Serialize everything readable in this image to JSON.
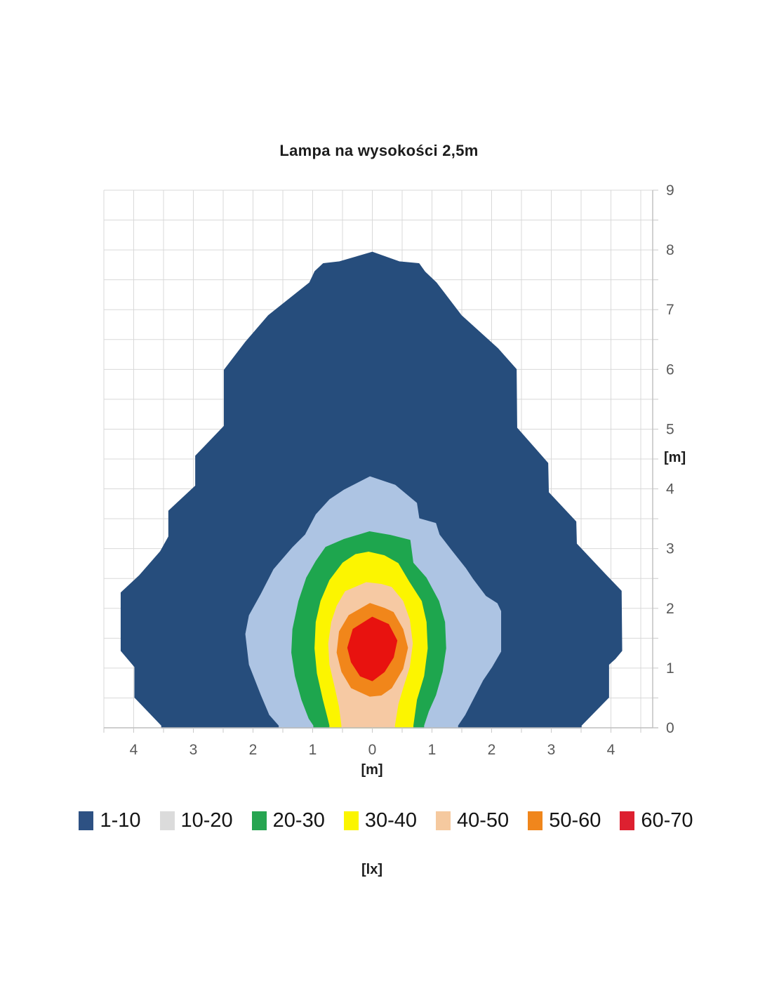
{
  "page": {
    "background": "#ffffff"
  },
  "labels": {
    "title": "Lampa na wysokości 2,5m",
    "y_axis_unit": "[m]",
    "x_axis_unit": "[m]",
    "legend_unit": "[lx]"
  },
  "style_colors": {
    "grid": "#d9d9d9",
    "axis_line": "#bdbdbd",
    "tick": "#c9c9c9",
    "tick_label": "#595959"
  },
  "chart_data": {
    "type": "heatmap",
    "subtype": "filled-contour",
    "title": "Lampa na wysokości 2,5m",
    "xlabel": "[m]",
    "ylabel": "[m]",
    "unit_label": "[lx]",
    "xlim": [
      -4.5,
      4.7
    ],
    "ylim": [
      0,
      9
    ],
    "grid": true,
    "x_grid_range": [
      -4.5,
      4.5
    ],
    "y_grid_range": [
      0,
      9
    ],
    "x_ticks": {
      "values": [
        -4,
        -3,
        -2,
        -1,
        0,
        1,
        2,
        3,
        4
      ],
      "labels": [
        "4",
        "3",
        "2",
        "1",
        "0",
        "1",
        "2",
        "3",
        "4"
      ],
      "minor_step": 0.5
    },
    "y_ticks": {
      "values": [
        0,
        1,
        2,
        3,
        4,
        5,
        6,
        7,
        8,
        9
      ],
      "labels": [
        "0",
        "1",
        "2",
        "3",
        "4",
        "5",
        "6",
        "7",
        "8",
        "9"
      ],
      "minor_step": 0.5,
      "side": "right"
    },
    "legend_position": "bottom",
    "legend": [
      {
        "label": "1-10",
        "swatch": "#2d5183"
      },
      {
        "label": "10-20",
        "swatch": "#dbdbdb"
      },
      {
        "label": "20-30",
        "swatch": "#27a551"
      },
      {
        "label": "30-40",
        "swatch": "#fbf500"
      },
      {
        "label": "40-50",
        "swatch": "#f5c99f"
      },
      {
        "label": "50-60",
        "swatch": "#f0861c"
      },
      {
        "label": "60-70",
        "swatch": "#dd2030"
      }
    ],
    "bands": [
      {
        "range": "1-10",
        "lx_min": 1,
        "lx_max": 10,
        "fill": "#264d7c",
        "points": [
          [
            0.0,
            7.96
          ],
          [
            0.45,
            7.8
          ],
          [
            0.78,
            7.77
          ],
          [
            0.88,
            7.63
          ],
          [
            1.07,
            7.45
          ],
          [
            1.49,
            6.9
          ],
          [
            2.1,
            6.35
          ],
          [
            2.41,
            6.0
          ],
          [
            2.42,
            5.02
          ],
          [
            2.94,
            4.43
          ],
          [
            2.95,
            3.94
          ],
          [
            3.41,
            3.45
          ],
          [
            3.42,
            3.08
          ],
          [
            3.92,
            2.55
          ],
          [
            4.17,
            2.29
          ],
          [
            4.18,
            1.29
          ],
          [
            4.07,
            1.16
          ],
          [
            3.96,
            1.06
          ],
          [
            3.96,
            0.51
          ],
          [
            3.5,
            0.04
          ],
          [
            3.5,
            0.0
          ],
          [
            -3.53,
            0.0
          ],
          [
            -3.53,
            0.04
          ],
          [
            -3.98,
            0.51
          ],
          [
            -3.98,
            1.02
          ],
          [
            -4.21,
            1.29
          ],
          [
            -4.21,
            2.26
          ],
          [
            -3.9,
            2.55
          ],
          [
            -3.55,
            2.95
          ],
          [
            -3.41,
            3.2
          ],
          [
            -3.41,
            3.63
          ],
          [
            -2.96,
            4.05
          ],
          [
            -2.96,
            4.55
          ],
          [
            -2.48,
            5.05
          ],
          [
            -2.48,
            5.99
          ],
          [
            -2.12,
            6.46
          ],
          [
            -1.74,
            6.9
          ],
          [
            -1.05,
            7.45
          ],
          [
            -0.96,
            7.64
          ],
          [
            -0.82,
            7.77
          ],
          [
            -0.55,
            7.8
          ]
        ]
      },
      {
        "range": "10-20",
        "lx_min": 10,
        "lx_max": 20,
        "fill": "#adc4e3",
        "points": [
          [
            -0.04,
            4.2
          ],
          [
            0.38,
            4.06
          ],
          [
            0.74,
            3.76
          ],
          [
            0.78,
            3.5
          ],
          [
            1.06,
            3.42
          ],
          [
            1.12,
            3.23
          ],
          [
            1.33,
            2.96
          ],
          [
            1.56,
            2.67
          ],
          [
            1.68,
            2.49
          ],
          [
            1.9,
            2.2
          ],
          [
            2.09,
            2.08
          ],
          [
            2.15,
            1.95
          ],
          [
            2.15,
            1.28
          ],
          [
            2.0,
            1.02
          ],
          [
            1.85,
            0.8
          ],
          [
            1.55,
            0.22
          ],
          [
            1.43,
            0.04
          ],
          [
            1.43,
            0.0
          ],
          [
            -1.56,
            0.0
          ],
          [
            -1.56,
            0.04
          ],
          [
            -1.72,
            0.22
          ],
          [
            -1.86,
            0.55
          ],
          [
            -2.06,
            1.06
          ],
          [
            -2.12,
            1.57
          ],
          [
            -2.06,
            1.88
          ],
          [
            -1.86,
            2.24
          ],
          [
            -1.65,
            2.65
          ],
          [
            -1.33,
            3.02
          ],
          [
            -1.12,
            3.23
          ],
          [
            -0.94,
            3.57
          ],
          [
            -0.71,
            3.82
          ],
          [
            -0.47,
            3.98
          ]
        ]
      },
      {
        "range": "20-30",
        "lx_min": 20,
        "lx_max": 30,
        "fill": "#1ea64e",
        "points": [
          [
            -0.05,
            3.28
          ],
          [
            0.3,
            3.22
          ],
          [
            0.63,
            3.14
          ],
          [
            0.68,
            2.76
          ],
          [
            0.9,
            2.51
          ],
          [
            1.11,
            2.12
          ],
          [
            1.21,
            1.77
          ],
          [
            1.23,
            1.33
          ],
          [
            1.17,
            0.94
          ],
          [
            1.06,
            0.55
          ],
          [
            0.94,
            0.28
          ],
          [
            0.86,
            0.04
          ],
          [
            0.86,
            0.0
          ],
          [
            -0.98,
            0.0
          ],
          [
            -0.98,
            0.04
          ],
          [
            -1.06,
            0.16
          ],
          [
            -1.18,
            0.47
          ],
          [
            -1.29,
            0.87
          ],
          [
            -1.35,
            1.26
          ],
          [
            -1.33,
            1.65
          ],
          [
            -1.23,
            2.12
          ],
          [
            -1.1,
            2.51
          ],
          [
            -0.94,
            2.79
          ],
          [
            -0.78,
            3.02
          ],
          [
            -0.48,
            3.15
          ]
        ]
      },
      {
        "range": "30-40",
        "lx_min": 30,
        "lx_max": 40,
        "fill": "#fcf500",
        "points": [
          [
            -0.06,
            2.94
          ],
          [
            0.2,
            2.88
          ],
          [
            0.43,
            2.75
          ],
          [
            0.62,
            2.43
          ],
          [
            0.82,
            2.12
          ],
          [
            0.9,
            1.77
          ],
          [
            0.92,
            1.33
          ],
          [
            0.86,
            0.87
          ],
          [
            0.74,
            0.47
          ],
          [
            0.68,
            0.04
          ],
          [
            0.68,
            0.0
          ],
          [
            -0.71,
            0.0
          ],
          [
            -0.71,
            0.04
          ],
          [
            -0.74,
            0.16
          ],
          [
            -0.82,
            0.47
          ],
          [
            -0.92,
            0.91
          ],
          [
            -0.96,
            1.33
          ],
          [
            -0.94,
            1.77
          ],
          [
            -0.86,
            2.12
          ],
          [
            -0.71,
            2.47
          ],
          [
            -0.49,
            2.76
          ],
          [
            -0.28,
            2.9
          ]
        ]
      },
      {
        "range": "40-50",
        "lx_min": 40,
        "lx_max": 50,
        "fill": "#f6c9a3",
        "points": [
          [
            -0.1,
            2.43
          ],
          [
            0.15,
            2.4
          ],
          [
            0.32,
            2.35
          ],
          [
            0.51,
            2.12
          ],
          [
            0.62,
            1.81
          ],
          [
            0.67,
            1.41
          ],
          [
            0.62,
            1.02
          ],
          [
            0.51,
            0.67
          ],
          [
            0.43,
            0.4
          ],
          [
            0.37,
            0.04
          ],
          [
            0.37,
            0.0
          ],
          [
            -0.51,
            0.0
          ],
          [
            -0.51,
            0.04
          ],
          [
            -0.55,
            0.35
          ],
          [
            -0.62,
            0.67
          ],
          [
            -0.71,
            1.06
          ],
          [
            -0.73,
            1.41
          ],
          [
            -0.68,
            1.77
          ],
          [
            -0.59,
            2.04
          ],
          [
            -0.45,
            2.28
          ]
        ]
      },
      {
        "range": "50-60",
        "lx_min": 50,
        "lx_max": 60,
        "fill": "#f1861a",
        "points": [
          [
            -0.04,
            2.08
          ],
          [
            0.2,
            2.0
          ],
          [
            0.35,
            1.93
          ],
          [
            0.51,
            1.65
          ],
          [
            0.59,
            1.34
          ],
          [
            0.51,
            0.99
          ],
          [
            0.32,
            0.67
          ],
          [
            0.15,
            0.55
          ],
          [
            -0.04,
            0.53
          ],
          [
            -0.35,
            0.67
          ],
          [
            -0.51,
            0.94
          ],
          [
            -0.59,
            1.26
          ],
          [
            -0.55,
            1.61
          ],
          [
            -0.39,
            1.88
          ]
        ]
      },
      {
        "range": "60-70",
        "lx_min": 60,
        "lx_max": 70,
        "fill": "#e8120f",
        "points": [
          [
            0.0,
            1.85
          ],
          [
            0.27,
            1.73
          ],
          [
            0.41,
            1.46
          ],
          [
            0.35,
            1.18
          ],
          [
            0.2,
            0.94
          ],
          [
            0.0,
            0.79
          ],
          [
            -0.2,
            0.87
          ],
          [
            -0.35,
            1.1
          ],
          [
            -0.41,
            1.34
          ],
          [
            -0.32,
            1.65
          ]
        ]
      }
    ]
  }
}
